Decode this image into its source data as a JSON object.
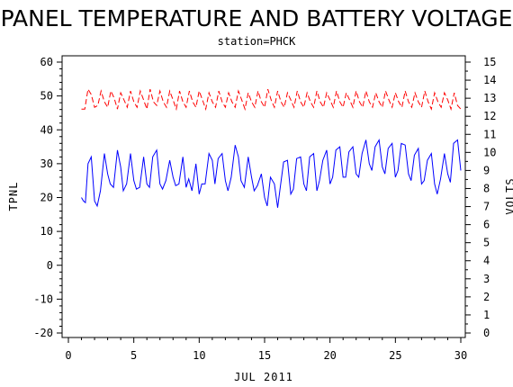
{
  "chart_data": {
    "type": "line",
    "title": "PANEL TEMPERATURE AND BATTERY VOLTAGE",
    "subtitle": "station=PHCK",
    "xlabel": "JUL 2011",
    "ylabel_left": "TPNL",
    "ylabel_right": "VOLTS",
    "xlim": [
      0,
      30
    ],
    "ylim_left": [
      -21,
      62
    ],
    "ylim_right": [
      0,
      15.2
    ],
    "x_ticks": [
      "0",
      "5",
      "10",
      "15",
      "20",
      "25",
      "30"
    ],
    "y_left_ticks": [
      "-20",
      "-10",
      "0",
      "10",
      "20",
      "30",
      "40",
      "50",
      "60"
    ],
    "y_right_ticks": [
      "0",
      "1",
      "2",
      "3",
      "4",
      "5",
      "6",
      "7",
      "8",
      "9",
      "10",
      "11",
      "12",
      "13",
      "14",
      "15"
    ],
    "grid": false,
    "series": [
      {
        "axis": "left",
        "color": "#0000ff",
        "style": "solid",
        "x": [
          1.0,
          1.15,
          1.3,
          1.5,
          1.75,
          2.0,
          2.2,
          2.45,
          2.75,
          3.0,
          3.2,
          3.45,
          3.75,
          4.0,
          4.2,
          4.45,
          4.75,
          5.0,
          5.2,
          5.45,
          5.75,
          6.0,
          6.2,
          6.45,
          6.75,
          7.0,
          7.2,
          7.45,
          7.75,
          8.0,
          8.2,
          8.45,
          8.75,
          9.0,
          9.2,
          9.45,
          9.75,
          10.0,
          10.2,
          10.45,
          10.75,
          11.0,
          11.2,
          11.45,
          11.75,
          12.0,
          12.2,
          12.45,
          12.75,
          13.0,
          13.2,
          13.45,
          13.75,
          14.0,
          14.2,
          14.45,
          14.75,
          15.0,
          15.2,
          15.45,
          15.75,
          16.0,
          16.2,
          16.45,
          16.75,
          17.0,
          17.2,
          17.45,
          17.75,
          18.0,
          18.2,
          18.45,
          18.75,
          19.0,
          19.2,
          19.45,
          19.75,
          20.0,
          20.2,
          20.45,
          20.75,
          21.0,
          21.2,
          21.45,
          21.75,
          22.0,
          22.2,
          22.45,
          22.75,
          23.0,
          23.2,
          23.45,
          23.75,
          24.0,
          24.2,
          24.45,
          24.75,
          25.0,
          25.2,
          25.45,
          25.75,
          26.0,
          26.2,
          26.45,
          26.75,
          27.0,
          27.2,
          27.45,
          27.75,
          28.0,
          28.2,
          28.45,
          28.75,
          29.0,
          29.2,
          29.45,
          29.75,
          30.0
        ],
        "y": [
          20,
          19,
          18.5,
          30,
          32,
          19,
          17.5,
          22,
          33,
          27,
          24,
          23,
          34,
          29,
          22,
          24,
          33,
          25,
          22.5,
          23,
          32,
          24,
          23,
          32,
          34,
          24,
          22.5,
          25,
          31,
          26,
          23.5,
          24,
          32,
          23,
          25.5,
          22,
          30,
          21,
          24,
          24,
          33,
          31,
          24,
          31.5,
          33,
          25,
          22,
          26,
          35.5,
          32,
          25,
          23,
          32,
          26,
          22,
          23.5,
          27,
          20,
          17.5,
          26,
          24,
          17,
          23,
          30.5,
          31,
          21,
          22.5,
          31.5,
          32,
          24,
          22,
          32,
          33,
          22,
          25,
          31,
          34,
          24,
          26,
          34,
          35,
          26,
          26,
          33.5,
          35,
          27,
          26,
          33,
          37,
          30,
          28,
          35,
          37,
          29,
          27,
          34.5,
          36,
          26,
          28,
          36,
          35.5,
          27,
          25,
          32.5,
          34.5,
          24,
          25,
          31,
          33,
          24,
          21,
          25.5,
          33,
          27,
          24.5,
          36,
          37,
          28
        ]
      },
      {
        "axis": "right",
        "color": "#ff0000",
        "style": "dashed",
        "x": [
          1.0,
          1.25,
          1.5,
          1.75,
          2.0,
          2.25,
          2.5,
          2.75,
          3.0,
          3.25,
          3.5,
          3.75,
          4.0,
          4.25,
          4.5,
          4.75,
          5.0,
          5.25,
          5.5,
          5.75,
          6.0,
          6.25,
          6.5,
          6.75,
          7.0,
          7.25,
          7.5,
          7.75,
          8.0,
          8.25,
          8.5,
          8.75,
          9.0,
          9.25,
          9.5,
          9.75,
          10.0,
          10.25,
          10.5,
          10.75,
          11.0,
          11.25,
          11.5,
          11.75,
          12.0,
          12.25,
          12.5,
          12.75,
          13.0,
          13.25,
          13.5,
          13.75,
          14.0,
          14.25,
          14.5,
          14.75,
          15.0,
          15.25,
          15.5,
          15.75,
          16.0,
          16.25,
          16.5,
          16.75,
          17.0,
          17.25,
          17.5,
          17.75,
          18.0,
          18.25,
          18.5,
          18.75,
          19.0,
          19.25,
          19.5,
          19.75,
          20.0,
          20.25,
          20.5,
          20.75,
          21.0,
          21.25,
          21.5,
          21.75,
          22.0,
          22.25,
          22.5,
          22.75,
          23.0,
          23.25,
          23.5,
          23.75,
          24.0,
          24.25,
          24.5,
          24.75,
          25.0,
          25.25,
          25.5,
          25.75,
          26.0,
          26.25,
          26.5,
          26.75,
          27.0,
          27.25,
          27.5,
          27.75,
          28.0,
          28.25,
          28.5,
          28.75,
          29.0,
          29.25,
          29.5,
          29.75,
          30.0
        ],
        "y": [
          12.4,
          12.4,
          13.5,
          13.2,
          12.5,
          12.6,
          13.4,
          12.8,
          12.5,
          13.4,
          13.0,
          12.4,
          13.3,
          12.9,
          12.5,
          13.4,
          12.8,
          12.5,
          13.4,
          12.9,
          12.4,
          13.5,
          12.8,
          12.6,
          13.4,
          12.8,
          12.5,
          13.4,
          12.9,
          12.4,
          13.4,
          12.8,
          12.5,
          13.4,
          12.8,
          12.5,
          13.4,
          12.9,
          12.4,
          13.3,
          12.8,
          12.5,
          13.4,
          12.8,
          12.5,
          13.3,
          12.8,
          12.5,
          13.4,
          12.9,
          12.4,
          13.3,
          12.8,
          12.5,
          13.4,
          12.8,
          12.5,
          13.5,
          12.9,
          12.5,
          13.4,
          12.8,
          12.5,
          13.3,
          12.9,
          12.5,
          13.4,
          12.8,
          12.5,
          13.3,
          12.8,
          12.5,
          13.4,
          12.8,
          12.5,
          13.3,
          12.9,
          12.5,
          13.4,
          12.8,
          12.5,
          13.3,
          12.9,
          12.5,
          13.4,
          12.8,
          12.5,
          13.4,
          12.8,
          12.5,
          13.3,
          12.8,
          12.5,
          13.4,
          12.9,
          12.5,
          13.3,
          12.8,
          12.5,
          13.4,
          12.8,
          12.5,
          13.3,
          12.8,
          12.5,
          13.4,
          12.8,
          12.4,
          13.3,
          12.8,
          12.5,
          13.3,
          12.9,
          12.4,
          13.3,
          12.6,
          12.4
        ]
      }
    ]
  }
}
